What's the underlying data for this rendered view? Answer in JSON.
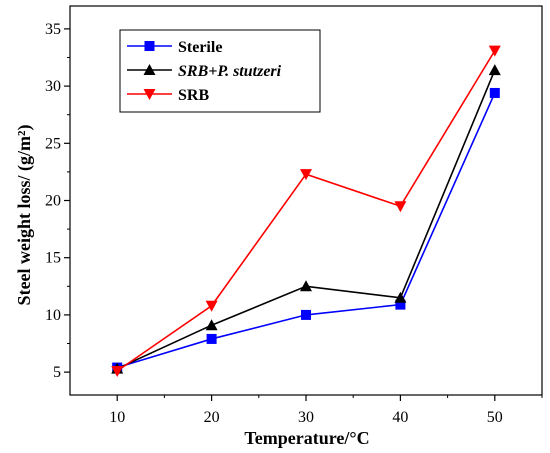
{
  "chart_data": {
    "type": "line",
    "xlabel": "Temperature/°C",
    "ylabel": "Steel weight loss/ (g/m²)",
    "x": [
      10,
      20,
      30,
      40,
      50
    ],
    "x_ticks": [
      "10",
      "20",
      "30",
      "40",
      "50"
    ],
    "y_ticks": [
      "5",
      "10",
      "15",
      "20",
      "25",
      "30",
      "35"
    ],
    "xlim": [
      5,
      55
    ],
    "ylim": [
      3,
      37
    ],
    "grid": false,
    "legend_position": "top-left",
    "series": [
      {
        "name": "Sterile",
        "color": "#0000ff",
        "marker": "square",
        "values": [
          5.4,
          7.9,
          10.0,
          10.9,
          29.4
        ]
      },
      {
        "name": "SRB+P. stutzeri",
        "color": "#000000",
        "marker": "triangle-up",
        "values": [
          5.3,
          9.1,
          12.5,
          11.5,
          31.4
        ]
      },
      {
        "name": "SRB",
        "color": "#ff0000",
        "marker": "triangle-down",
        "values": [
          5.1,
          10.8,
          22.3,
          19.5,
          33.1
        ]
      }
    ]
  }
}
